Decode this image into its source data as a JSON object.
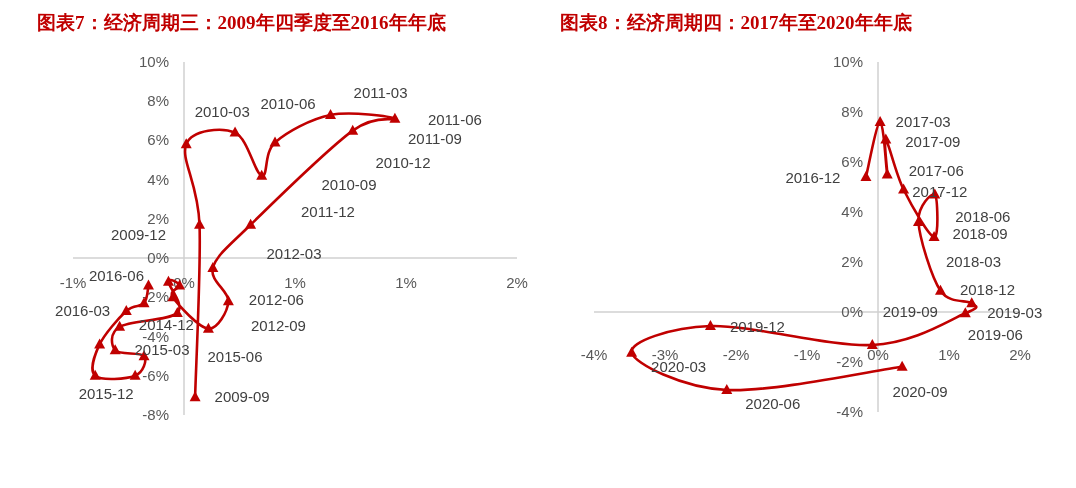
{
  "chart_data": [
    {
      "type": "line",
      "title": "图表7：经济周期三：2009年四季度至2016年年底",
      "color": "#c00000",
      "marker": "triangle",
      "x": [
        0.05,
        0.07,
        0.01,
        0.23,
        0.35,
        0.41,
        0.66,
        0.95,
        0.76,
        0.3,
        0.13,
        0.2,
        0.11,
        -0.05,
        -0.02,
        -0.07,
        -0.03,
        -0.29,
        -0.31,
        -0.18,
        -0.22,
        -0.4,
        -0.38,
        -0.26,
        -0.18,
        -0.16
      ],
      "values": [
        -7.1,
        1.7,
        5.8,
        6.4,
        4.2,
        5.9,
        7.3,
        7.1,
        6.5,
        1.7,
        -0.5,
        -2.2,
        -3.6,
        -2.0,
        -1.4,
        -1.2,
        -2.8,
        -3.5,
        -4.7,
        -5.0,
        -6.0,
        -6.0,
        -4.4,
        -2.7,
        -2.3,
        -1.4
      ],
      "xlim": [
        -0.5,
        1.5
      ],
      "ylim": [
        -8,
        10
      ],
      "xticks": [
        {
          "value": -0.5,
          "label": "-1%"
        },
        {
          "value": 0,
          "label": "0%"
        },
        {
          "value": 0.5,
          "label": "1%"
        },
        {
          "value": 1,
          "label": "1%"
        },
        {
          "value": 1.5,
          "label": "2%"
        }
      ],
      "yticks": [
        {
          "value": 10,
          "label": "10%"
        },
        {
          "value": 8,
          "label": "8%"
        },
        {
          "value": 6,
          "label": "6%"
        },
        {
          "value": 4,
          "label": "4%"
        },
        {
          "value": 2,
          "label": "2%"
        },
        {
          "value": 0,
          "label": "0%"
        },
        {
          "value": -2,
          "label": "-2%"
        },
        {
          "value": -4,
          "label": "-4%"
        },
        {
          "value": -6,
          "label": "-6%"
        },
        {
          "value": -8,
          "label": "-8%"
        }
      ],
      "annotations": [
        {
          "text": "2009-09",
          "x": 0.05,
          "y": -7.1
        },
        {
          "text": "2009-12",
          "x": 0.07,
          "y": 1.7
        },
        {
          "text": "2010-03",
          "x": 0.01,
          "y": 5.8
        },
        {
          "text": "2010-06",
          "x": 0.23,
          "y": 6.4
        },
        "2010-09",
        "2010-12",
        {
          "text": "2011-03",
          "x": 0.66,
          "y": 7.3
        },
        {
          "text": "2011-06",
          "x": 0.95,
          "y": 7.1
        },
        "2011-09",
        "2011-12",
        "2012-03",
        {
          "text": "2012-06",
          "x": 0.2,
          "y": -2.2
        },
        {
          "text": "2012-09",
          "x": 0.11,
          "y": -3.6
        },
        {
          "text": "2014-12",
          "x": -0.03,
          "y": -2.8
        },
        {
          "text": "2015-03",
          "x": -0.18,
          "y": -5.0
        },
        "2015-06",
        {
          "text": "2015-12",
          "x": -0.4,
          "y": -6.0
        },
        {
          "text": "2016-03",
          "x": -0.29,
          "y": -3.5
        },
        {
          "text": "2016-06",
          "x": -0.16,
          "y": -1.4
        }
      ]
    },
    {
      "type": "line",
      "title": "图表8：经济周期四：2017年至2020年年底",
      "color": "#c00000",
      "marker": "triangle",
      "x": [
        -0.17,
        0.03,
        0.13,
        0.11,
        0.36,
        0.79,
        0.8,
        0.57,
        0.88,
        1.32,
        1.23,
        -0.08,
        -2.36,
        -3.47,
        -2.13,
        0.34
      ],
      "values": [
        5.4,
        7.6,
        5.5,
        6.9,
        4.9,
        3.0,
        4.7,
        3.6,
        0.85,
        0.35,
        -0.05,
        -1.32,
        -0.56,
        -1.63,
        -3.12,
        -2.19
      ],
      "xlim": [
        -4,
        2
      ],
      "ylim": [
        -4,
        10
      ],
      "xticks": [
        {
          "value": -4,
          "label": "-4%"
        },
        {
          "value": -3,
          "label": "-3%"
        },
        {
          "value": -2,
          "label": "-2%"
        },
        {
          "value": -1,
          "label": "-1%"
        },
        {
          "value": 0,
          "label": "0%"
        },
        {
          "value": 1,
          "label": "1%"
        },
        {
          "value": 2,
          "label": "2%"
        }
      ],
      "yticks": [
        {
          "value": 10,
          "label": "10%"
        },
        {
          "value": 8,
          "label": "8%"
        },
        {
          "value": 6,
          "label": "6%"
        },
        {
          "value": 4,
          "label": "4%"
        },
        {
          "value": 2,
          "label": "2%"
        },
        {
          "value": 0,
          "label": "0%"
        },
        {
          "value": -2,
          "label": "-2%"
        },
        {
          "value": -4,
          "label": "-4%"
        }
      ],
      "annotations": [
        {
          "text": "2016-12",
          "x": -0.17,
          "y": 5.4
        },
        {
          "text": "2017-03",
          "x": 0.03,
          "y": 7.6
        },
        {
          "text": "2017-09",
          "x": 0.11,
          "y": 6.9
        },
        {
          "text": "2017-06",
          "x": 0.13,
          "y": 5.5
        },
        {
          "text": "2017-12",
          "x": 0.8,
          "y": 4.7
        },
        {
          "text": "2018-06",
          "x": 0.8,
          "y": 4.7
        },
        {
          "text": "2018-09",
          "x": 0.79,
          "y": 3.0
        },
        {
          "text": "2018-03",
          "x": 0.57,
          "y": 3.6
        },
        {
          "text": "2018-12",
          "x": 0.88,
          "y": 0.85
        },
        {
          "text": "2019-03",
          "x": 1.32,
          "y": 0.35
        },
        {
          "text": "2019-06",
          "x": 1.23,
          "y": -0.05
        },
        {
          "text": "2019-09",
          "x": -0.08,
          "y": -1.32
        },
        {
          "text": "2019-12",
          "x": -2.36,
          "y": -0.56
        },
        {
          "text": "2020-03",
          "x": -3.47,
          "y": -1.63
        },
        {
          "text": "2020-06",
          "x": -2.13,
          "y": -3.12
        },
        {
          "text": "2020-09",
          "x": 0.34,
          "y": -2.19
        }
      ]
    }
  ]
}
